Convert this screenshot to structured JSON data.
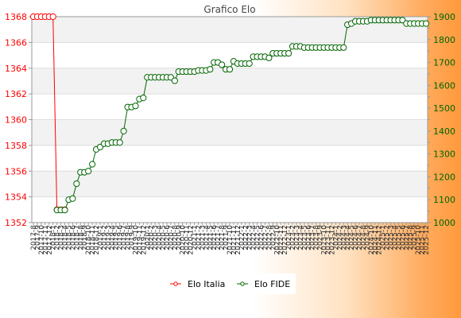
{
  "chart_data": {
    "type": "line",
    "title": "Grafico Elo",
    "xlabel": "",
    "ylabel_left": "",
    "ylabel_right": "",
    "y_left_lim": [
      1352,
      1368
    ],
    "y_left_ticks": [
      "1352",
      "1354",
      "1356",
      "1358",
      "1360",
      "1362",
      "1364",
      "1366",
      "1368"
    ],
    "y_right_lim": [
      1000,
      1900
    ],
    "y_right_ticks": [
      "1000",
      "1100",
      "1200",
      "1300",
      "1400",
      "1500",
      "1600",
      "1700",
      "1800",
      "1900"
    ],
    "x_tick_labels": [
      "2017-8",
      "2017-9",
      "2017-10",
      "2017-11",
      "2017-12",
      "2018-1",
      "2018-2",
      "2018-3",
      "2018-4",
      "2018-5",
      "2018-6",
      "2018-7",
      "2018-8",
      "2018-9",
      "2018-10",
      "2018-11",
      "2018-12",
      "2019-1",
      "2019-2",
      "2019-3",
      "2019-4",
      "2019-5",
      "2019-6",
      "2019-7",
      "2019-8",
      "2019-9",
      "2019-10",
      "2019-11",
      "2019-12",
      "2020-1",
      "2020-2",
      "2020-3",
      "2020-4",
      "2020-5",
      "2020-6",
      "2020-7",
      "2020-8",
      "2020-9",
      "2020-10",
      "2020-11",
      "2020-12",
      "2021-1",
      "2021-2",
      "2021-3",
      "2021-4",
      "2021-5",
      "2021-6",
      "2021-7",
      "2021-8",
      "2021-9",
      "2021-10",
      "2021-11",
      "2021-12",
      "2022-1",
      "2022-2",
      "2022-3",
      "2022-4",
      "2022-5",
      "2022-6",
      "2022-7",
      "2022-8",
      "2022-9",
      "2022-10",
      "2022-11",
      "2022-12",
      "2023-1",
      "2023-2",
      "2023-3",
      "2023-4",
      "2023-5",
      "2023-6",
      "2023-7",
      "2023-8",
      "2023-9",
      "2023-10",
      "2023-11",
      "2023-12",
      "2024-1",
      "2024-2",
      "2024-3",
      "2024-4",
      "2024-5",
      "2024-6",
      "2024-7",
      "2024-8",
      "2024-9",
      "2024-10",
      "2024-11",
      "2024-12",
      "2025-1",
      "2025-2",
      "2025-3",
      "2025-4",
      "2025-5",
      "2025-6",
      "2025-7",
      "2025-8",
      "2025-9",
      "2025-10",
      "2025-11",
      "2025-12"
    ],
    "legend_position": "bottom",
    "series": [
      {
        "name": "Elo Italia",
        "axis": "left",
        "color": "#ff0000",
        "x": [
          0,
          1,
          2,
          3,
          4,
          5,
          6,
          7,
          8
        ],
        "values": [
          1368,
          1368,
          1368,
          1368,
          1368,
          1368,
          1353,
          1353,
          1353
        ]
      },
      {
        "name": "Elo FIDE",
        "axis": "right",
        "color": "#006400",
        "x": [
          6,
          7,
          8,
          9,
          10,
          11,
          12,
          13,
          14,
          15,
          16,
          17,
          18,
          19,
          20,
          21,
          22,
          23,
          24,
          25,
          26,
          27,
          28,
          29,
          30,
          31,
          32,
          33,
          34,
          35,
          36,
          37,
          38,
          39,
          40,
          41,
          42,
          43,
          44,
          45,
          46,
          47,
          48,
          49,
          50,
          51,
          52,
          53,
          54,
          55,
          56,
          57,
          58,
          59,
          60,
          61,
          62,
          63,
          64,
          65,
          66,
          67,
          68,
          69,
          70,
          71,
          72,
          73,
          74,
          75,
          76,
          77,
          78,
          79,
          80,
          81,
          82,
          83,
          84,
          85,
          86,
          87,
          88,
          89,
          90,
          91,
          92,
          93,
          94,
          95,
          96,
          97,
          98,
          99,
          100
        ],
        "values": [
          1055,
          1055,
          1055,
          1100,
          1105,
          1170,
          1220,
          1220,
          1225,
          1255,
          1320,
          1330,
          1345,
          1345,
          1350,
          1350,
          1350,
          1400,
          1505,
          1505,
          1510,
          1540,
          1545,
          1635,
          1635,
          1635,
          1635,
          1635,
          1635,
          1635,
          1620,
          1660,
          1660,
          1660,
          1660,
          1660,
          1665,
          1665,
          1665,
          1670,
          1700,
          1700,
          1690,
          1670,
          1670,
          1705,
          1695,
          1695,
          1695,
          1695,
          1725,
          1725,
          1725,
          1725,
          1720,
          1740,
          1740,
          1740,
          1740,
          1740,
          1770,
          1770,
          1770,
          1765,
          1765,
          1765,
          1765,
          1765,
          1765,
          1765,
          1765,
          1765,
          1765,
          1765,
          1865,
          1870,
          1880,
          1880,
          1880,
          1880,
          1885,
          1885,
          1885,
          1885,
          1885,
          1885,
          1885,
          1885,
          1885,
          1870,
          1870,
          1870,
          1870,
          1870,
          1870
        ]
      }
    ]
  }
}
